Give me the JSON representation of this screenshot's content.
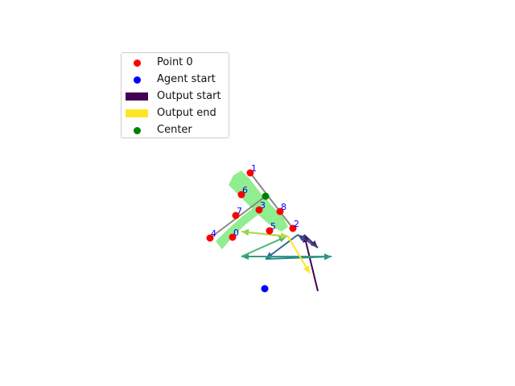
{
  "chart_data": {
    "type": "scatter",
    "title": "",
    "xlabel": "",
    "ylabel": "",
    "axes_visible": false,
    "xlim": [
      0,
      640
    ],
    "ylim": [
      480,
      0
    ],
    "legend": {
      "placement": "upper-left",
      "entries": [
        {
          "label": "Point 0",
          "marker": "dot",
          "color": "#ff0000"
        },
        {
          "label": "Agent start",
          "marker": "dot",
          "color": "#0000ff"
        },
        {
          "label": "Output start",
          "marker": "rect",
          "color": "#440154"
        },
        {
          "label": "Output end",
          "marker": "rect",
          "color": "#fde725"
        },
        {
          "label": "Center",
          "marker": "dot",
          "color": "#008000"
        }
      ]
    },
    "points": [
      {
        "label": "0",
        "x": 289,
        "y": 295
      },
      {
        "label": "1",
        "x": 311,
        "y": 215
      },
      {
        "label": "2",
        "x": 364,
        "y": 284
      },
      {
        "label": "3",
        "x": 322,
        "y": 261
      },
      {
        "label": "4",
        "x": 261,
        "y": 296
      },
      {
        "label": "5",
        "x": 335,
        "y": 287
      },
      {
        "label": "6",
        "x": 300,
        "y": 242
      },
      {
        "label": "7",
        "x": 293,
        "y": 268
      },
      {
        "label": "8",
        "x": 348,
        "y": 263
      }
    ],
    "point_color": "#ff0000",
    "label_color": "#0000ff",
    "agent_start": {
      "x": 329,
      "y": 359,
      "color": "#0000ff"
    },
    "center": {
      "x": 330,
      "y": 244,
      "color": "#008000"
    },
    "skeleton_lines": [
      {
        "from": [
          311,
          215
        ],
        "to": [
          364,
          284
        ]
      },
      {
        "from": [
          330,
          244
        ],
        "to": [
          261,
          296
        ]
      }
    ],
    "skeleton_color": "#888888",
    "region_color": "#90ee90",
    "region_polygons": [
      [
        [
          290,
          218
        ],
        [
          300,
          212
        ],
        [
          310,
          222
        ],
        [
          330,
          248
        ],
        [
          352,
          270
        ],
        [
          358,
          282
        ],
        [
          350,
          288
        ],
        [
          338,
          282
        ],
        [
          322,
          268
        ],
        [
          300,
          246
        ],
        [
          284,
          230
        ]
      ],
      [
        [
          268,
          300
        ],
        [
          280,
          288
        ],
        [
          300,
          270
        ],
        [
          318,
          256
        ],
        [
          330,
          246
        ],
        [
          336,
          254
        ],
        [
          322,
          266
        ],
        [
          304,
          280
        ],
        [
          288,
          296
        ],
        [
          276,
          310
        ]
      ]
    ],
    "output_path": [
      [
        395,
        362
      ],
      [
        378,
        292
      ],
      [
        395,
        308
      ],
      [
        370,
        292
      ],
      [
        330,
        322
      ],
      [
        412,
        319
      ],
      [
        300,
        319
      ],
      [
        356,
        294
      ],
      [
        300,
        288
      ],
      [
        358,
        294
      ],
      [
        385,
        340
      ]
    ],
    "output_colormap": [
      "#440154",
      "#3b528b",
      "#21918c",
      "#5ec962",
      "#fde725"
    ]
  }
}
